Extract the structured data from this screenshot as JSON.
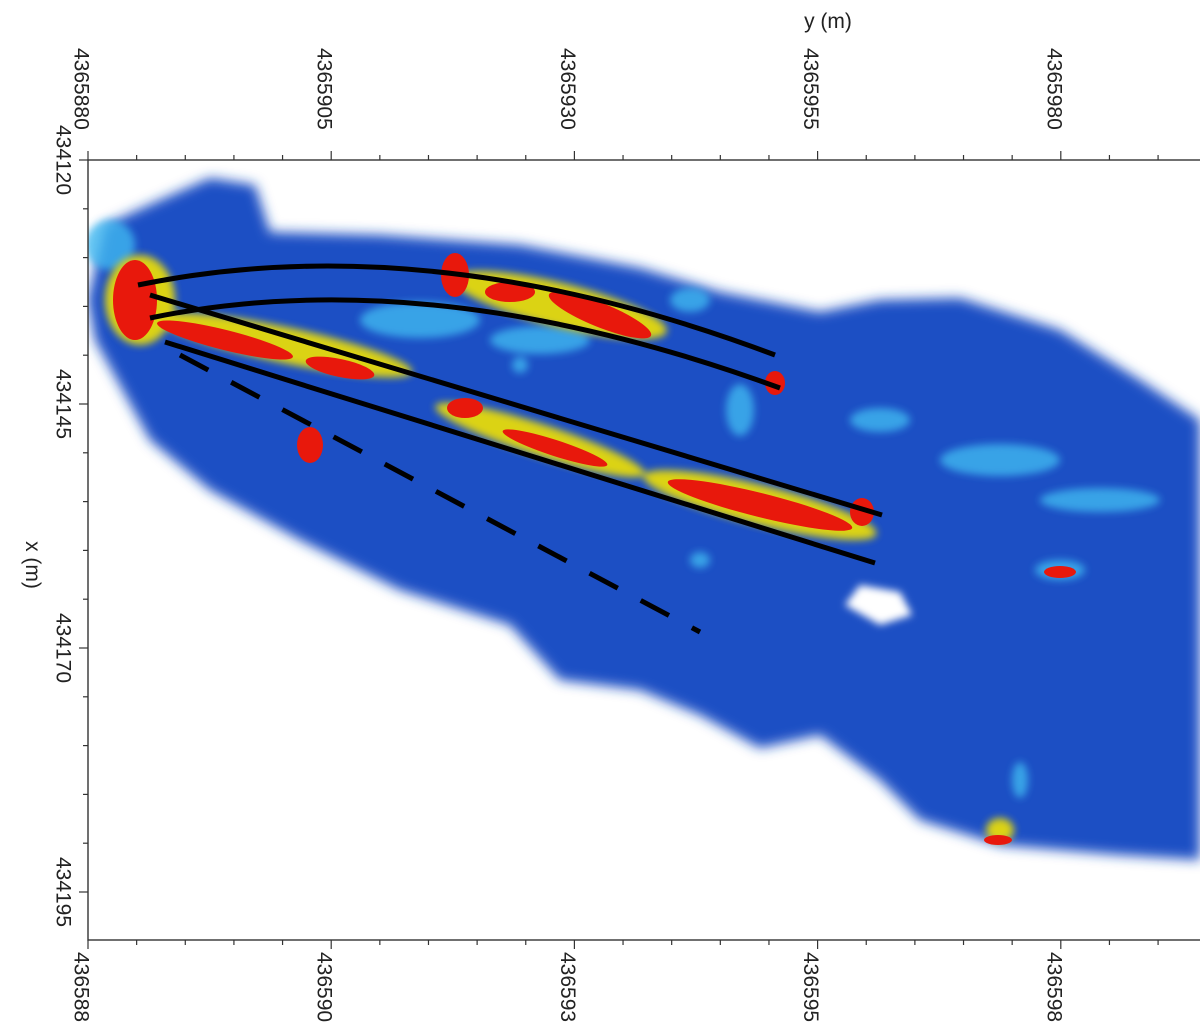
{
  "axes": {
    "y_label": "y (m)",
    "x_label": "x (m)",
    "top_ticks": [
      "4365880",
      "4365905",
      "4365930",
      "4365955",
      "4365980"
    ],
    "left_ticks": [
      "434120",
      "434145",
      "434170",
      "434195"
    ],
    "bottom_ticks": [
      "436588",
      "436590",
      "436593",
      "436595",
      "436598"
    ]
  }
}
